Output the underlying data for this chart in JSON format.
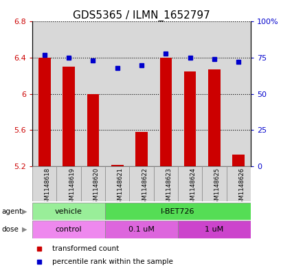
{
  "title": "GDS5365 / ILMN_1652797",
  "samples": [
    "GSM1148618",
    "GSM1148619",
    "GSM1148620",
    "GSM1148621",
    "GSM1148622",
    "GSM1148623",
    "GSM1148624",
    "GSM1148625",
    "GSM1148626"
  ],
  "red_values": [
    6.4,
    6.3,
    6.0,
    5.21,
    5.58,
    6.4,
    6.25,
    6.27,
    5.33
  ],
  "blue_values": [
    77,
    75,
    73,
    68,
    70,
    78,
    75,
    74,
    72
  ],
  "ylim_left": [
    5.2,
    6.8
  ],
  "ylim_right": [
    0,
    100
  ],
  "yticks_left": [
    5.2,
    5.6,
    6.0,
    6.4,
    6.8
  ],
  "yticks_right": [
    0,
    25,
    50,
    75,
    100
  ],
  "ytick_labels_left": [
    "5.2",
    "5.6",
    "6",
    "6.4",
    "6.8"
  ],
  "ytick_labels_right": [
    "0",
    "25",
    "50",
    "75",
    "100%"
  ],
  "dotted_lines": [
    5.6,
    6.0,
    6.4,
    6.8
  ],
  "bar_color": "#cc0000",
  "dot_color": "#0000cc",
  "agent_groups": [
    {
      "label": "vehicle",
      "start": 0,
      "end": 3,
      "color": "#99ee99"
    },
    {
      "label": "I-BET726",
      "start": 3,
      "end": 9,
      "color": "#55dd55"
    }
  ],
  "dose_groups": [
    {
      "label": "control",
      "start": 0,
      "end": 3,
      "color": "#ee88ee"
    },
    {
      "label": "0.1 uM",
      "start": 3,
      "end": 6,
      "color": "#dd66dd"
    },
    {
      "label": "1 uM",
      "start": 6,
      "end": 9,
      "color": "#cc44cc"
    }
  ],
  "legend_red": "transformed count",
  "legend_blue": "percentile rank within the sample",
  "background_color": "#ffffff",
  "title_fontsize": 11,
  "axis_color_left": "#cc0000",
  "axis_color_right": "#0000cc",
  "col_bg_color": "#d8d8d8"
}
